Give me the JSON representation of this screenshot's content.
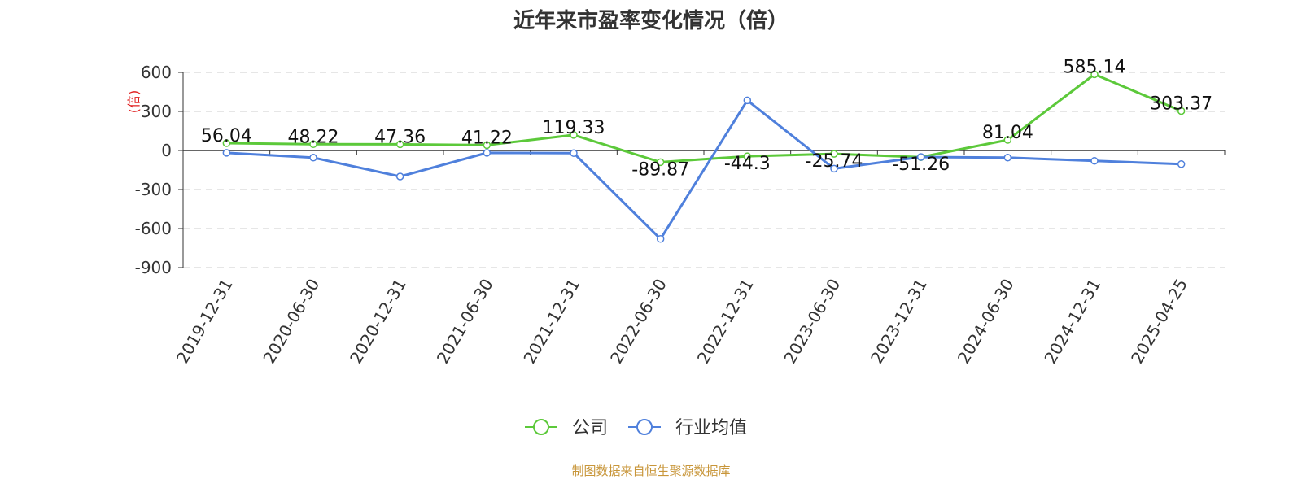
{
  "chart_data": {
    "type": "line",
    "title": "近年来市盈率变化情况（倍）",
    "ylabel": "(倍)",
    "xlabel": "",
    "categories": [
      "2019-12-31",
      "2020-06-30",
      "2020-12-31",
      "2021-06-30",
      "2021-12-31",
      "2022-06-30",
      "2022-12-31",
      "2023-06-30",
      "2023-12-31",
      "2024-06-30",
      "2024-12-31",
      "2025-04-25"
    ],
    "ylim": [
      -900,
      600
    ],
    "yticks": [
      600,
      300,
      0,
      -300,
      -600,
      -900
    ],
    "grid": true,
    "legend_position": "bottom-center",
    "series": [
      {
        "name": "公司",
        "color": "#5cc93a",
        "values": [
          56.04,
          48.22,
          47.36,
          41.22,
          119.33,
          -89.87,
          -44.3,
          -25.74,
          -51.26,
          81.04,
          585.14,
          303.37
        ],
        "labels": [
          "56.04",
          "48.22",
          "47.36",
          "41.22",
          "119.33",
          "-89.87",
          "-44.3",
          "-25.74",
          "-51.26",
          "81.04",
          "585.14",
          "303.37"
        ]
      },
      {
        "name": "行业均值",
        "color": "#4f80dc",
        "values": [
          -18,
          -55,
          -200,
          -18,
          -20,
          -680,
          385,
          -140,
          -50,
          -55,
          -80,
          -105
        ]
      }
    ]
  },
  "source": {
    "text": "制图数据来自恒生聚源数据库",
    "color": "#c8963a"
  },
  "colors": {
    "ylabel": "#e02020",
    "axis": "#333333"
  }
}
